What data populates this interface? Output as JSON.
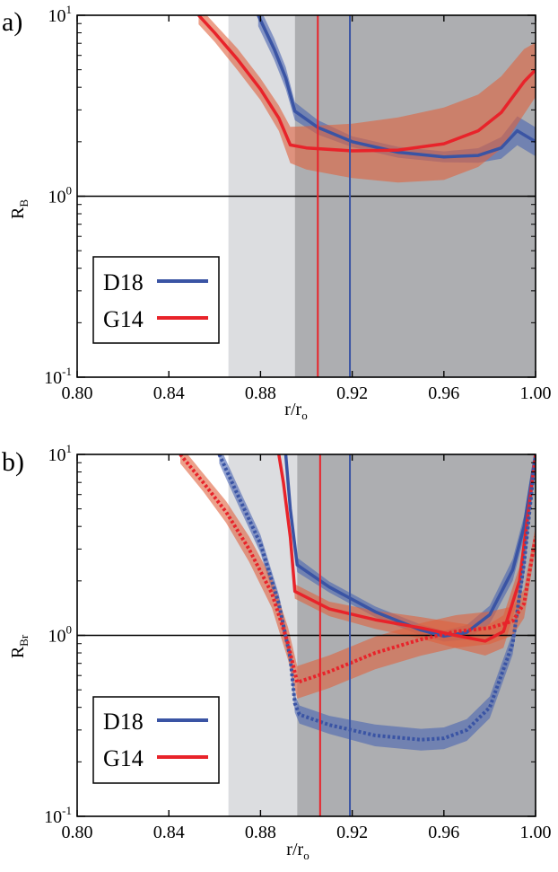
{
  "chart_data": [
    {
      "panel_label": "a)",
      "type": "line",
      "ylabel": "R",
      "ylabel_sub": "B",
      "xlabel": "r/r",
      "xlabel_sub": "o",
      "xlim": [
        0.8,
        1.0
      ],
      "ylim": [
        0.1,
        10
      ],
      "yscale": "log",
      "x_ticks": [
        "0.80",
        "0.84",
        "0.88",
        "0.92",
        "0.96",
        "1.00"
      ],
      "y_ticks": [
        {
          "base": "10",
          "exp": "-1"
        },
        {
          "base": "10",
          "exp": "0"
        },
        {
          "base": "10",
          "exp": "1"
        }
      ],
      "shaded_regions": [
        {
          "x0": 0.866,
          "x1": 0.895,
          "color": "#dcdde0"
        },
        {
          "x0": 0.895,
          "x1": 1.0,
          "color": "#adaeb1"
        }
      ],
      "vlines": [
        {
          "x": 0.905,
          "color": "#e8232a"
        },
        {
          "x": 0.919,
          "color": "#3a54a4"
        }
      ],
      "hline": 1,
      "legend": [
        {
          "label": "D18",
          "color": "#3a54a4"
        },
        {
          "label": "G14",
          "color": "#e8232a"
        }
      ],
      "series": [
        {
          "name": "D18",
          "color": "#3a54a4",
          "style": "solid",
          "x": [
            0.879,
            0.886,
            0.891,
            0.895,
            0.905,
            0.92,
            0.94,
            0.96,
            0.975,
            0.985,
            0.992,
            1.0
          ],
          "y": [
            10,
            6.5,
            4.5,
            2.95,
            2.4,
            2.0,
            1.75,
            1.65,
            1.68,
            1.85,
            2.3,
            2.0
          ],
          "band": [
            0.06,
            0.06,
            0.06,
            0.05,
            0.04,
            0.03,
            0.03,
            0.03,
            0.04,
            0.06,
            0.08,
            0.08
          ]
        },
        {
          "name": "G14",
          "color": "#e8232a",
          "style": "solid",
          "x": [
            0.853,
            0.86,
            0.87,
            0.88,
            0.888,
            0.893,
            0.9,
            0.92,
            0.94,
            0.96,
            0.975,
            0.985,
            0.995,
            1.0
          ],
          "y": [
            10,
            8.0,
            5.7,
            3.9,
            2.7,
            1.92,
            1.85,
            1.78,
            1.8,
            1.95,
            2.3,
            2.9,
            4.3,
            5.0
          ],
          "band": [
            0.05,
            0.05,
            0.06,
            0.06,
            0.07,
            0.1,
            0.12,
            0.15,
            0.18,
            0.2,
            0.2,
            0.2,
            0.18,
            0.15
          ]
        }
      ]
    },
    {
      "panel_label": "b)",
      "type": "line",
      "ylabel": "R",
      "ylabel_sub": "Br",
      "xlabel": "r/r",
      "xlabel_sub": "o",
      "xlim": [
        0.8,
        1.0
      ],
      "ylim": [
        0.1,
        10
      ],
      "yscale": "log",
      "x_ticks": [
        "0.80",
        "0.84",
        "0.88",
        "0.92",
        "0.96",
        "1.00"
      ],
      "y_ticks": [
        {
          "base": "10",
          "exp": "-1"
        },
        {
          "base": "10",
          "exp": "0"
        },
        {
          "base": "10",
          "exp": "1"
        }
      ],
      "shaded_regions": [
        {
          "x0": 0.866,
          "x1": 0.896,
          "color": "#dcdde0"
        },
        {
          "x0": 0.896,
          "x1": 1.0,
          "color": "#adaeb1"
        }
      ],
      "vlines": [
        {
          "x": 0.906,
          "color": "#e8232a"
        },
        {
          "x": 0.919,
          "color": "#3a54a4"
        }
      ],
      "hline": 1,
      "legend": [
        {
          "label": "D18",
          "color": "#3a54a4"
        },
        {
          "label": "G14",
          "color": "#e8232a"
        }
      ],
      "series": [
        {
          "name": "D18",
          "color": "#3a54a4",
          "style": "solid",
          "x": [
            0.891,
            0.893,
            0.896,
            0.91,
            0.93,
            0.95,
            0.96,
            0.97,
            0.98,
            0.99,
            0.995,
            1.0
          ],
          "y": [
            10,
            5.0,
            2.45,
            1.85,
            1.35,
            1.07,
            0.99,
            1.04,
            1.3,
            2.3,
            4.0,
            10
          ],
          "band": [
            0.05,
            0.05,
            0.04,
            0.03,
            0.03,
            0.03,
            0.03,
            0.04,
            0.05,
            0.06,
            0.06,
            0.06
          ]
        },
        {
          "name": "G14",
          "color": "#e8232a",
          "style": "solid",
          "x": [
            0.888,
            0.89,
            0.893,
            0.895,
            0.91,
            0.93,
            0.95,
            0.965,
            0.978,
            0.986,
            0.993,
            1.0
          ],
          "y": [
            10,
            7.0,
            3.5,
            1.75,
            1.4,
            1.22,
            1.1,
            1.0,
            0.93,
            1.05,
            2.0,
            10
          ],
          "band": [
            0.04,
            0.04,
            0.04,
            0.04,
            0.04,
            0.05,
            0.06,
            0.07,
            0.08,
            0.09,
            0.08,
            0.06
          ]
        },
        {
          "name": "D18",
          "color": "#3a54a4",
          "style": "dotted",
          "x": [
            0.862,
            0.87,
            0.88,
            0.888,
            0.893,
            0.895,
            0.897,
            0.91,
            0.93,
            0.95,
            0.96,
            0.97,
            0.98,
            0.99,
            0.995,
            1.0
          ],
          "y": [
            10,
            6.0,
            3.2,
            1.5,
            0.75,
            0.42,
            0.365,
            0.32,
            0.28,
            0.265,
            0.27,
            0.3,
            0.4,
            0.9,
            2.5,
            10
          ],
          "band": [
            0.05,
            0.05,
            0.05,
            0.05,
            0.05,
            0.05,
            0.05,
            0.05,
            0.06,
            0.06,
            0.06,
            0.06,
            0.06,
            0.06,
            0.06,
            0.06
          ]
        },
        {
          "name": "G14",
          "color": "#e8232a",
          "style": "dotted",
          "x": [
            0.845,
            0.855,
            0.865,
            0.875,
            0.885,
            0.892,
            0.896,
            0.91,
            0.93,
            0.95,
            0.965,
            0.98,
            0.99,
            0.995,
            1.0
          ],
          "y": [
            10,
            7.0,
            4.8,
            3.0,
            1.7,
            0.9,
            0.55,
            0.63,
            0.8,
            0.95,
            1.05,
            1.1,
            1.2,
            1.5,
            3.5
          ],
          "band": [
            0.05,
            0.05,
            0.06,
            0.07,
            0.08,
            0.09,
            0.09,
            0.09,
            0.09,
            0.09,
            0.09,
            0.09,
            0.08,
            0.08,
            0.06
          ]
        }
      ]
    }
  ]
}
